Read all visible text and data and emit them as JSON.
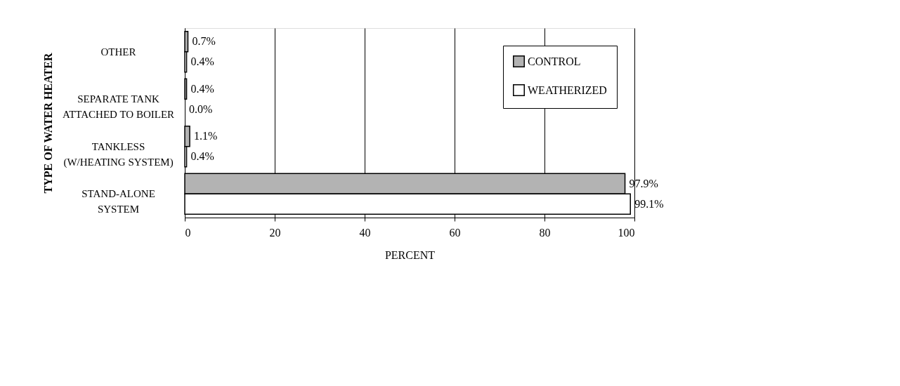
{
  "chart_data": {
    "type": "bar",
    "orientation": "horizontal",
    "ylabel": "TYPE OF WATER HEATER",
    "xlabel": "PERCENT",
    "categories": [
      "OTHER",
      "SEPARATE TANK\nATTACHED TO BOILER",
      "TANKLESS\n(W/HEATING SYSTEM)",
      "STAND-ALONE\nSYSTEM"
    ],
    "series": [
      {
        "name": "CONTROL",
        "color": "#b3b3b3",
        "values": [
          0.7,
          0.4,
          1.1,
          97.9
        ],
        "value_labels": [
          "0.7%",
          "0.4%",
          "1.1%",
          "97.9%"
        ]
      },
      {
        "name": "WEATHERIZED",
        "color": "#ffffff",
        "values": [
          0.4,
          0.0,
          0.4,
          99.1
        ],
        "value_labels": [
          "0.4%",
          "0.0%",
          "0.4%",
          "99.1%"
        ]
      }
    ],
    "xlim": [
      0,
      100
    ],
    "xticks": [
      0,
      20,
      40,
      60,
      80,
      100
    ],
    "grid": "x",
    "legend": "top right"
  }
}
